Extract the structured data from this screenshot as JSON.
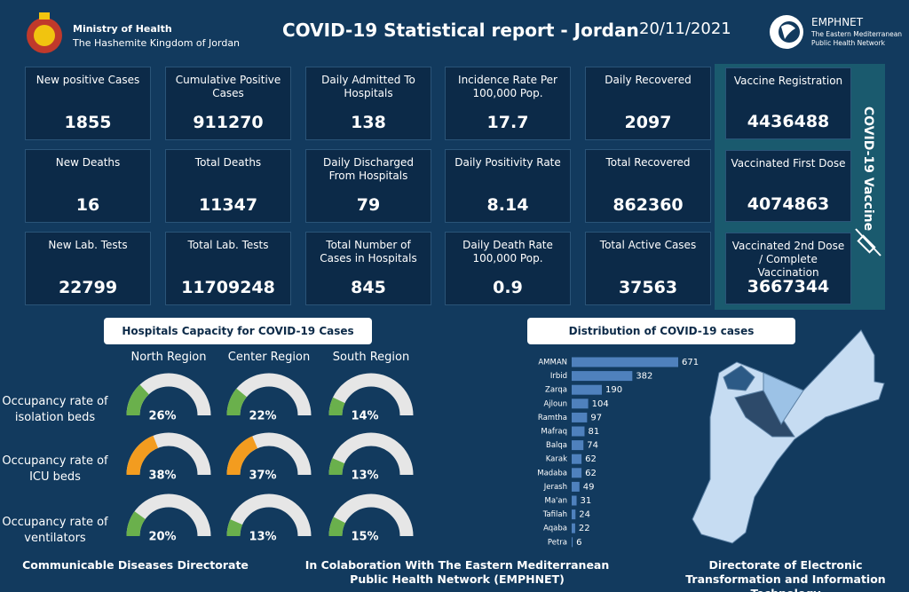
{
  "header": {
    "org_line1": "Ministry of Health",
    "org_line2": "The Hashemite Kingdom of Jordan",
    "title": "COVID-19 Statistical report - Jordan",
    "date": "20/11/2021",
    "partner": "EMPHNET",
    "partner_line1": "The Eastern Mediterranean",
    "partner_line2": "Public Health Network"
  },
  "cards": [
    {
      "label": "New positive Cases",
      "value": 1855
    },
    {
      "label": "Cumulative  Positive Cases",
      "value": 911270
    },
    {
      "label": "Daily Admitted To Hospitals",
      "value": 138
    },
    {
      "label": "Incidence Rate Per 100,000 Pop.",
      "value": 17.7
    },
    {
      "label": "Daily Recovered",
      "value": 2097
    },
    {
      "label": "New Deaths",
      "value": 16
    },
    {
      "label": "Total Deaths",
      "value": 11347
    },
    {
      "label": "Daily Discharged From Hospitals",
      "value": 79
    },
    {
      "label": "Daily Positivity Rate",
      "value": 8.14
    },
    {
      "label": "Total Recovered",
      "value": 862360
    },
    {
      "label": "New Lab. Tests",
      "value": 22799
    },
    {
      "label": "Total Lab. Tests",
      "value": 11709248
    },
    {
      "label": "Total Number of Cases in Hospitals",
      "value": 845
    },
    {
      "label": "Daily Death Rate 100,000 Pop.",
      "value": 0.9
    },
    {
      "label": "Total Active Cases",
      "value": 37563
    }
  ],
  "vaccine": {
    "title": "COVID-19 Vaccine",
    "cards": [
      {
        "label": "Vaccine Registration",
        "value": 4436488
      },
      {
        "label": "Vaccinated First Dose",
        "value": 4074863
      },
      {
        "label": "Vaccinated 2nd Dose / Complete Vaccination",
        "value": 3667344
      }
    ]
  },
  "chart_data": [
    {
      "type": "gauge",
      "title": "Hospitals Capacity for COVID-19 Cases",
      "track_color": "#e6e6e6",
      "categories": [
        "North Region",
        "Center Region",
        "South Region"
      ],
      "series": [
        {
          "name": "Occupancy rate of isolation beds",
          "colors": [
            "#6ab04c",
            "#6ab04c",
            "#6ab04c"
          ],
          "values": [
            26,
            22,
            14
          ],
          "value_labels": [
            "26%",
            "22%",
            "14%"
          ]
        },
        {
          "name": "Occupancy rate of ICU beds",
          "colors": [
            "#f39c1f",
            "#f39c1f",
            "#6ab04c"
          ],
          "values": [
            38,
            37,
            13
          ],
          "value_labels": [
            "38%",
            "37%",
            "13%"
          ]
        },
        {
          "name": "Occupancy rate of ventilators",
          "colors": [
            "#6ab04c",
            "#6ab04c",
            "#6ab04c"
          ],
          "values": [
            20,
            13,
            15
          ],
          "value_labels": [
            "20%",
            "13%",
            "15%"
          ]
        }
      ]
    },
    {
      "type": "bar",
      "title": "Distribution of COVID-19 cases",
      "color": "#4f81bd",
      "categories": [
        "AMMAN",
        "Irbid",
        "Zarqa",
        "Ajloun",
        "Ramtha",
        "Mafraq",
        "Balqa",
        "Karak",
        "Madaba",
        "Jerash",
        "Ma'an",
        "Tafilah",
        "Aqaba",
        "Petra"
      ],
      "values": [
        671,
        382,
        190,
        104,
        97,
        81,
        74,
        62,
        62,
        49,
        31,
        24,
        22,
        6
      ]
    }
  ],
  "footer": {
    "left": "Communicable Diseases Directorate",
    "center": "In Colaboration With The Eastern Mediterranean Public Health Network (EMPHNET)",
    "right": "Directorate of Electronic Transformation and  Information Technology"
  }
}
